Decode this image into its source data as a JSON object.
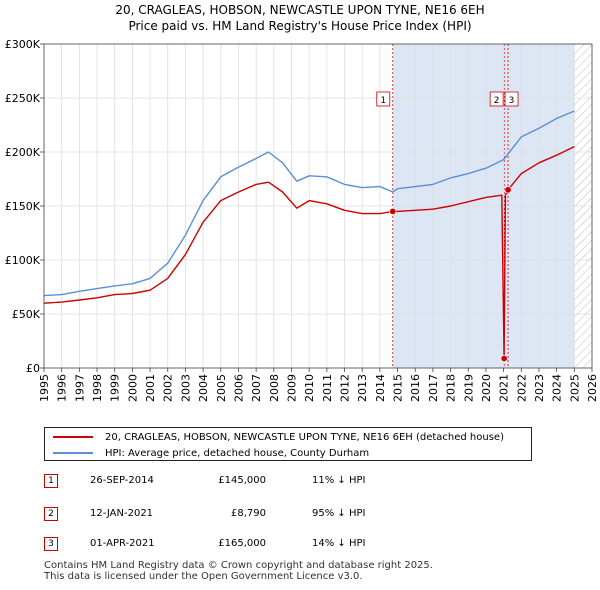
{
  "title": {
    "line1": "20, CRAGLEAS, HOBSON, NEWCASTLE UPON TYNE, NE16 6EH",
    "line2": "Price paid vs. HM Land Registry's House Price Index (HPI)"
  },
  "colors": {
    "property": "#cc0000",
    "hpi": "#5b8fd4",
    "shade": "#dde6f4",
    "marker_border": "#cc0000",
    "grid": "#dddddd"
  },
  "chart_data": {
    "type": "line",
    "title": "Price paid vs. HM Land Registry's House Price Index (HPI)",
    "xlabel": "",
    "ylabel": "",
    "xlim": [
      1995,
      2026
    ],
    "ylim": [
      0,
      300000
    ],
    "x_ticks": [
      "1995",
      "1996",
      "1997",
      "1998",
      "1999",
      "2000",
      "2001",
      "2002",
      "2003",
      "2004",
      "2005",
      "2006",
      "2007",
      "2008",
      "2009",
      "2010",
      "2011",
      "2012",
      "2013",
      "2014",
      "2015",
      "2016",
      "2017",
      "2018",
      "2019",
      "2020",
      "2021",
      "2022",
      "2023",
      "2024",
      "2025",
      "2026"
    ],
    "y_ticks": [
      {
        "value": 0,
        "label": "£0"
      },
      {
        "value": 50000,
        "label": "£50K"
      },
      {
        "value": 100000,
        "label": "£100K"
      },
      {
        "value": 150000,
        "label": "£150K"
      },
      {
        "value": 200000,
        "label": "£200K"
      },
      {
        "value": 250000,
        "label": "£250K"
      },
      {
        "value": 300000,
        "label": "£300K"
      }
    ],
    "grid": true,
    "shaded_ranges": [
      [
        2014.73,
        2025.0
      ],
      [
        2021.03,
        2021.25
      ]
    ],
    "hatched_from": 2025.0,
    "series": [
      {
        "name": "HPI: Average price, detached house, County Durham",
        "x": [
          1995,
          1996,
          1997,
          1998,
          1999,
          2000,
          2001,
          2002,
          2003,
          2004,
          2005,
          2006,
          2007,
          2007.7,
          2008.5,
          2009.3,
          2010,
          2011,
          2012,
          2013,
          2014,
          2014.73,
          2015,
          2016,
          2017,
          2018,
          2019,
          2020,
          2021,
          2022,
          2023,
          2024,
          2025
        ],
        "values": [
          67000,
          68000,
          71000,
          73500,
          76000,
          78000,
          83000,
          97000,
          123000,
          155000,
          177000,
          186000,
          194000,
          200000,
          190000,
          173000,
          178000,
          177000,
          170000,
          167000,
          168000,
          163000,
          166000,
          168000,
          170000,
          176000,
          180000,
          185000,
          193000,
          214000,
          222000,
          231000,
          238000
        ]
      },
      {
        "name": "20, CRAGLEAS, HOBSON, NEWCASTLE UPON TYNE, NE16 6EH (detached house)",
        "x": [
          1995,
          1996,
          1997,
          1998,
          1999,
          2000,
          2001,
          2002,
          2003,
          2004,
          2005,
          2006,
          2007,
          2007.7,
          2008.5,
          2009.3,
          2010,
          2011,
          2012,
          2013,
          2014,
          2014.73,
          2015,
          2016,
          2017,
          2018,
          2019,
          2020,
          2020.9,
          2021.03,
          2021.1,
          2021.25,
          2022,
          2023,
          2024,
          2025
        ],
        "values": [
          60000,
          61000,
          63000,
          65000,
          68000,
          69000,
          72000,
          83000,
          105000,
          135000,
          155000,
          163000,
          170000,
          172000,
          163000,
          148000,
          155000,
          152000,
          146000,
          143000,
          143000,
          145000,
          145000,
          146000,
          147000,
          150000,
          154000,
          158000,
          160000,
          8790,
          160000,
          165000,
          180000,
          190000,
          197000,
          205000
        ]
      }
    ],
    "markers": [
      {
        "label": "1",
        "x": 2014.73,
        "y": 145000
      },
      {
        "label": "2",
        "x": 2021.03,
        "y": 8790
      },
      {
        "label": "3",
        "x": 2021.25,
        "y": 165000
      }
    ]
  },
  "legend": {
    "property_label": "20, CRAGLEAS, HOBSON, NEWCASTLE UPON TYNE, NE16 6EH (detached house)",
    "hpi_label": "HPI: Average price, detached house, County Durham"
  },
  "transactions": [
    {
      "num": "1",
      "date": "26-SEP-2014",
      "price": "£145,000",
      "hpi": "11% ↓ HPI"
    },
    {
      "num": "2",
      "date": "12-JAN-2021",
      "price": "£8,790",
      "hpi": "95% ↓ HPI"
    },
    {
      "num": "3",
      "date": "01-APR-2021",
      "price": "£165,000",
      "hpi": "14% ↓ HPI"
    }
  ],
  "footer": {
    "line1": "Contains HM Land Registry data © Crown copyright and database right 2025.",
    "line2": "This data is licensed under the Open Government Licence v3.0."
  }
}
